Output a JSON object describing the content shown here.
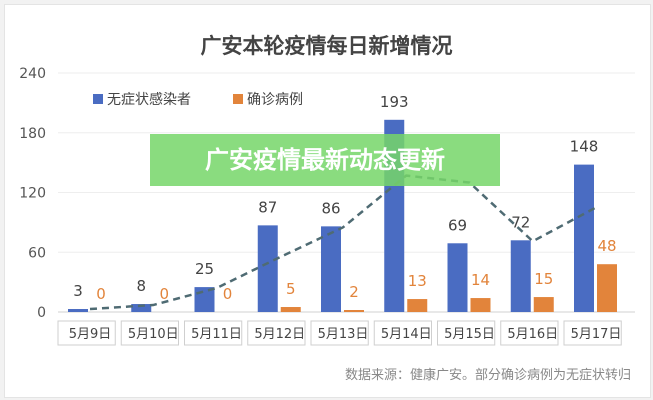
{
  "banner": "广安疫情最新动态更新",
  "source": "数据来源：健康广安。部分确诊病例为无症状转归",
  "chart_data": {
    "type": "bar",
    "title": "广安本轮疫情每日新增情况",
    "categories": [
      "5月9日",
      "5月10日",
      "5月11日",
      "5月12日",
      "5月13日",
      "5月14日",
      "5月15日",
      "5月16日",
      "5月17日"
    ],
    "series": [
      {
        "name": "无症状感染者",
        "color": "#4a6cc2",
        "values": [
          3,
          8,
          25,
          87,
          86,
          193,
          69,
          72,
          148
        ]
      },
      {
        "name": "确诊病例",
        "color": "#e2843b",
        "values": [
          0,
          0,
          0,
          5,
          2,
          13,
          14,
          15,
          48
        ]
      }
    ],
    "trend_line": {
      "style": "dashed",
      "color": "#4f6b73",
      "values": [
        3,
        7,
        24,
        55,
        85,
        137,
        130,
        71,
        105
      ]
    },
    "ylim": [
      0,
      240
    ],
    "yticks": [
      0,
      60,
      120,
      180,
      240
    ],
    "grid": true,
    "legend": "top-left"
  }
}
